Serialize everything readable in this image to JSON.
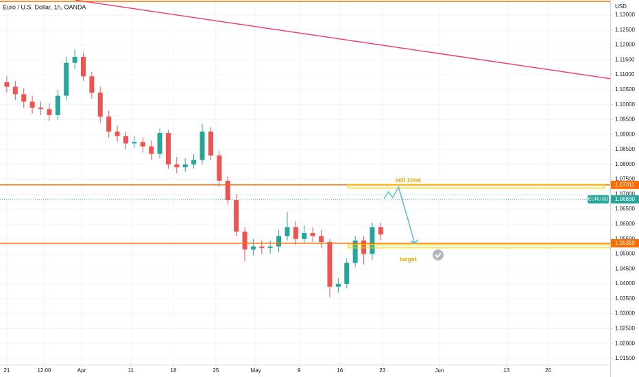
{
  "chart_data": {
    "type": "candlestick",
    "title": "Euro / U.S. Dollar, 1h, OANDA",
    "currency": "USD",
    "x": [
      0,
      1,
      2,
      3,
      4,
      5,
      6,
      7,
      8,
      9,
      10,
      11,
      12,
      13,
      14,
      15,
      16,
      17,
      18,
      19,
      20,
      21,
      22,
      23,
      24,
      25,
      26,
      27,
      28,
      29,
      30,
      31,
      32,
      33,
      34,
      35,
      36,
      37,
      38,
      39,
      40,
      41,
      42,
      43,
      44
    ],
    "open": [
      1.1075,
      1.106,
      1.1035,
      1.101,
      1.099,
      1.0985,
      1.0965,
      1.103,
      1.114,
      1.116,
      1.1095,
      1.104,
      1.096,
      1.091,
      1.0895,
      1.087,
      1.0875,
      1.086,
      1.0835,
      1.0905,
      1.08,
      1.079,
      1.08,
      1.0815,
      1.091,
      1.083,
      1.0745,
      1.068,
      1.0575,
      1.0515,
      1.0525,
      1.052,
      1.0525,
      1.056,
      1.059,
      1.055,
      1.057,
      1.056,
      1.054,
      1.039,
      1.04,
      1.047,
      1.0545,
      1.05,
      1.059
    ],
    "high": [
      1.1095,
      1.108,
      1.1055,
      1.103,
      1.101,
      1.1005,
      1.105,
      1.116,
      1.1185,
      1.1175,
      1.111,
      1.106,
      1.098,
      1.093,
      1.091,
      1.0895,
      1.089,
      1.088,
      1.092,
      1.0915,
      1.0825,
      1.082,
      1.0835,
      1.0935,
      1.0925,
      1.0845,
      1.076,
      1.07,
      1.059,
      1.055,
      1.0545,
      1.0545,
      1.058,
      1.064,
      1.061,
      1.0595,
      1.059,
      1.058,
      1.055,
      1.042,
      1.0485,
      1.056,
      1.056,
      1.0605,
      1.0605
    ],
    "low": [
      1.104,
      1.1015,
      1.099,
      1.097,
      1.0965,
      1.0945,
      1.095,
      1.1015,
      1.112,
      1.108,
      1.102,
      1.094,
      1.089,
      1.0875,
      1.085,
      1.0855,
      1.084,
      1.0815,
      1.082,
      1.0785,
      1.077,
      1.0775,
      1.0785,
      1.08,
      1.0815,
      1.0725,
      1.0665,
      1.056,
      1.0475,
      1.0495,
      1.05,
      1.05,
      1.0505,
      1.0545,
      1.053,
      1.0535,
      1.054,
      1.052,
      1.0355,
      1.037,
      1.0385,
      1.0455,
      1.0465,
      1.048,
      1.0545
    ],
    "close": [
      1.106,
      1.1035,
      1.101,
      1.099,
      1.0985,
      1.0965,
      1.103,
      1.114,
      1.116,
      1.1095,
      1.104,
      1.096,
      1.091,
      1.0895,
      1.087,
      1.0875,
      1.086,
      1.0835,
      1.0905,
      1.08,
      1.079,
      1.08,
      1.0815,
      1.091,
      1.083,
      1.0745,
      1.068,
      1.0575,
      1.0515,
      1.0525,
      1.052,
      1.0525,
      1.056,
      1.059,
      1.055,
      1.057,
      1.056,
      1.054,
      1.039,
      1.04,
      1.047,
      1.0545,
      1.05,
      1.059,
      1.0565
    ],
    "up_color": "#26a69a",
    "down_color": "#ef5350",
    "xlim": [
      -0.8,
      71.0
    ],
    "xticks": [
      {
        "value": 0,
        "label": "21"
      },
      {
        "value": 4.4,
        "label": "12:00"
      },
      {
        "value": 8.8,
        "label": "Apr"
      },
      {
        "value": 14.6,
        "label": "11"
      },
      {
        "value": 19.6,
        "label": "18"
      },
      {
        "value": 24.6,
        "label": "25"
      },
      {
        "value": 29.3,
        "label": "May"
      },
      {
        "value": 34.4,
        "label": "9"
      },
      {
        "value": 39.2,
        "label": "16"
      },
      {
        "value": 44.2,
        "label": "23"
      },
      {
        "value": 50.9,
        "label": "Jun"
      },
      {
        "value": 58.8,
        "label": "13"
      },
      {
        "value": 63.7,
        "label": "20"
      }
    ],
    "ylim": [
      1.01292,
      1.13505
    ],
    "yticks": [
      {
        "value": 1.015,
        "label": "1.01500"
      },
      {
        "value": 1.02,
        "label": "1.02000"
      },
      {
        "value": 1.025,
        "label": "1.02500"
      },
      {
        "value": 1.03,
        "label": "1.03000"
      },
      {
        "value": 1.035,
        "label": "1.03500"
      },
      {
        "value": 1.04,
        "label": "1.04000"
      },
      {
        "value": 1.045,
        "label": "1.04500"
      },
      {
        "value": 1.05,
        "label": "1.05000"
      },
      {
        "value": 1.055,
        "label": "1.05500"
      },
      {
        "value": 1.06,
        "label": "1.06000"
      },
      {
        "value": 1.065,
        "label": "1.06500"
      },
      {
        "value": 1.07,
        "label": "1.07000"
      },
      {
        "value": 1.075,
        "label": "1.07500"
      },
      {
        "value": 1.08,
        "label": "1.08000"
      },
      {
        "value": 1.085,
        "label": "1.08500"
      },
      {
        "value": 1.09,
        "label": "1.09000"
      },
      {
        "value": 1.095,
        "label": "1.09500"
      },
      {
        "value": 1.1,
        "label": "1.10000"
      },
      {
        "value": 1.105,
        "label": "1.10500"
      },
      {
        "value": 1.11,
        "label": "1.11000"
      },
      {
        "value": 1.115,
        "label": "1.11500"
      },
      {
        "value": 1.12,
        "label": "1.12000"
      },
      {
        "value": 1.125,
        "label": "1.12500"
      },
      {
        "value": 1.13,
        "label": "1.13000"
      }
    ],
    "grid": true,
    "horizontal_lines": [
      {
        "value": 1.1346,
        "color": "#ff6d00"
      },
      {
        "value": 1.07311,
        "label": "1.07311",
        "color": "#ff6d00"
      },
      {
        "value": 1.05359,
        "label": "1.05359",
        "color": "#ff6d00"
      }
    ],
    "price_line": {
      "name": "EURUSD",
      "value": 1.0683,
      "label": "1.06830",
      "color": "#26a69a"
    },
    "trend_line": {
      "x": [
        8.1,
        71.0
      ],
      "y": [
        1.135,
        1.1087
      ],
      "color": "#f23f78"
    },
    "zones": [
      {
        "name": "sell zone",
        "x": [
          40.2,
          70.3
        ],
        "y": [
          1.0721,
          1.0733
        ],
        "color": "#ffd400"
      },
      {
        "name": "target",
        "x": [
          40.2,
          71.0
        ],
        "y": [
          1.052,
          1.0531
        ],
        "color": "#ffd400"
      }
    ],
    "projection": {
      "x": [
        44.4,
        44.9,
        45.4,
        46.1,
        48.0
      ],
      "y": [
        1.0685,
        1.0708,
        1.0689,
        1.0724,
        1.0536
      ],
      "color": "#4fc3c7"
    }
  }
}
